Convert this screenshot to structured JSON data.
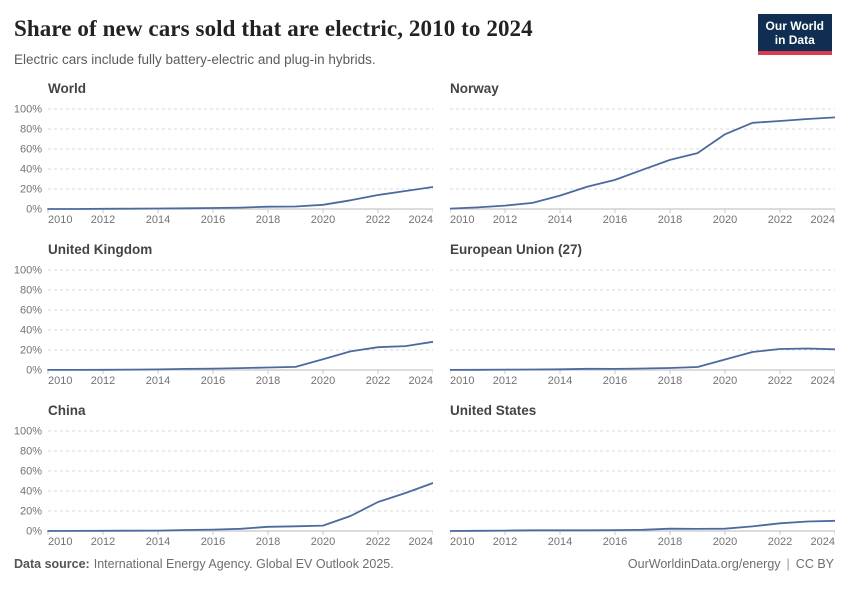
{
  "header": {
    "title": "Share of new cars sold that are electric, 2010 to 2024",
    "subtitle": "Electric cars include fully battery-electric and plug-in hybrids.",
    "logo": {
      "line1": "Our World",
      "line2": "in Data"
    }
  },
  "footer": {
    "source_label": "Data source:",
    "source_text": "International Energy Agency. Global EV Outlook 2025.",
    "url": "OurWorldinData.org/energy",
    "separator": "|",
    "license": "CC BY"
  },
  "colors": {
    "line": "#4d6a9f",
    "grid": "#d9d9d9",
    "axis": "#c8c8c8",
    "tick_text": "#737373",
    "facet_title": "#444444",
    "logo_bg": "#0f2e52",
    "logo_accent": "#d73c50"
  },
  "chart_data": [
    {
      "type": "line",
      "name": "World",
      "x": [
        2010,
        2011,
        2012,
        2013,
        2014,
        2015,
        2016,
        2017,
        2018,
        2019,
        2020,
        2021,
        2022,
        2023,
        2024
      ],
      "values": [
        0.01,
        0.05,
        0.2,
        0.3,
        0.5,
        0.7,
        1.0,
        1.4,
        2.3,
        2.5,
        4.2,
        8.7,
        14,
        18,
        22
      ],
      "ylim": [
        0,
        100
      ],
      "yticks": [
        0,
        20,
        40,
        60,
        80,
        100
      ],
      "xticks": [
        2010,
        2012,
        2014,
        2016,
        2018,
        2020,
        2022,
        2024
      ],
      "grid": "dashed",
      "legend": "none"
    },
    {
      "type": "line",
      "name": "Norway",
      "x": [
        2010,
        2011,
        2012,
        2013,
        2014,
        2015,
        2016,
        2017,
        2018,
        2019,
        2020,
        2021,
        2022,
        2023,
        2024
      ],
      "values": [
        0.4,
        1.6,
        3.4,
        6.1,
        13.4,
        22.4,
        29.1,
        39.2,
        49.1,
        55.9,
        74.7,
        86.2,
        88,
        90,
        91.6
      ],
      "ylim": [
        0,
        100
      ],
      "yticks": [
        0,
        20,
        40,
        60,
        80,
        100
      ],
      "xticks": [
        2010,
        2012,
        2014,
        2016,
        2018,
        2020,
        2022,
        2024
      ],
      "grid": "dashed",
      "legend": "none"
    },
    {
      "type": "line",
      "name": "United Kingdom",
      "x": [
        2010,
        2011,
        2012,
        2013,
        2014,
        2015,
        2016,
        2017,
        2018,
        2019,
        2020,
        2021,
        2022,
        2023,
        2024
      ],
      "values": [
        0.1,
        0.1,
        0.2,
        0.4,
        0.6,
        1.1,
        1.4,
        1.9,
        2.5,
        3.1,
        10.7,
        18.6,
        22.8,
        23.9,
        28.2
      ],
      "ylim": [
        0,
        100
      ],
      "yticks": [
        0,
        20,
        40,
        60,
        80,
        100
      ],
      "xticks": [
        2010,
        2012,
        2014,
        2016,
        2018,
        2020,
        2022,
        2024
      ],
      "grid": "dashed",
      "legend": "none"
    },
    {
      "type": "line",
      "name": "European Union (27)",
      "x": [
        2010,
        2011,
        2012,
        2013,
        2014,
        2015,
        2016,
        2017,
        2018,
        2019,
        2020,
        2021,
        2022,
        2023,
        2024
      ],
      "values": [
        0.1,
        0.2,
        0.4,
        0.5,
        0.7,
        1.2,
        1.1,
        1.5,
        2.0,
        3.0,
        10.5,
        18,
        21,
        21.5,
        20.7
      ],
      "ylim": [
        0,
        100
      ],
      "yticks": [
        0,
        20,
        40,
        60,
        80,
        100
      ],
      "xticks": [
        2010,
        2012,
        2014,
        2016,
        2018,
        2020,
        2022,
        2024
      ],
      "grid": "dashed",
      "legend": "none"
    },
    {
      "type": "line",
      "name": "China",
      "x": [
        2010,
        2011,
        2012,
        2013,
        2014,
        2015,
        2016,
        2017,
        2018,
        2019,
        2020,
        2021,
        2022,
        2023,
        2024
      ],
      "values": [
        0.01,
        0.1,
        0.2,
        0.3,
        0.4,
        1.0,
        1.4,
        2.2,
        4.2,
        4.7,
        5.4,
        15,
        29,
        38,
        48
      ],
      "ylim": [
        0,
        100
      ],
      "yticks": [
        0,
        20,
        40,
        60,
        80,
        100
      ],
      "xticks": [
        2010,
        2012,
        2014,
        2016,
        2018,
        2020,
        2022,
        2024
      ],
      "grid": "dashed",
      "legend": "none"
    },
    {
      "type": "line",
      "name": "United States",
      "x": [
        2010,
        2011,
        2012,
        2013,
        2014,
        2015,
        2016,
        2017,
        2018,
        2019,
        2020,
        2021,
        2022,
        2023,
        2024
      ],
      "values": [
        0.02,
        0.2,
        0.4,
        0.7,
        0.7,
        0.7,
        0.9,
        1.2,
        2.3,
        2.1,
        2.3,
        4.6,
        7.7,
        9.5,
        10.2
      ],
      "ylim": [
        0,
        100
      ],
      "yticks": [
        0,
        20,
        40,
        60,
        80,
        100
      ],
      "xticks": [
        2010,
        2012,
        2014,
        2016,
        2018,
        2020,
        2022,
        2024
      ],
      "grid": "dashed",
      "legend": "none"
    }
  ]
}
